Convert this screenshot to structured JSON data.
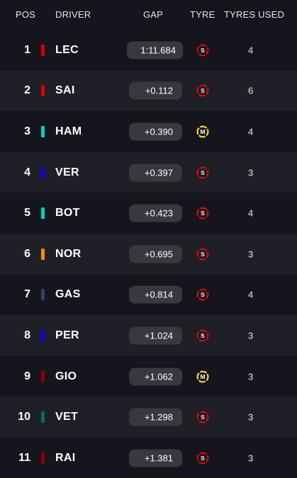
{
  "header": {
    "pos": "POS",
    "driver": "DRIVER",
    "gap": "GAP",
    "tyre": "TYRE",
    "tyres_used": "TYRES USED"
  },
  "compound_colors": {
    "S": "#e10600",
    "M": "#ffd12e"
  },
  "rows": [
    {
      "pos": "1",
      "driver": "LEC",
      "team_color": "#dc0000",
      "gap": "1:11.684",
      "tyre": "S",
      "tyre_icon": "soft-tyre-icon",
      "tyres_used": "4"
    },
    {
      "pos": "2",
      "driver": "SAI",
      "team_color": "#dc0000",
      "gap": "+0.112",
      "tyre": "S",
      "tyre_icon": "soft-tyre-icon",
      "tyres_used": "6"
    },
    {
      "pos": "3",
      "driver": "HAM",
      "team_color": "#00d2be",
      "gap": "+0.390",
      "tyre": "M",
      "tyre_icon": "medium-tyre-icon",
      "tyres_used": "4"
    },
    {
      "pos": "4",
      "driver": "VER",
      "team_color": "#0600ef",
      "gap": "+0.397",
      "tyre": "S",
      "tyre_icon": "soft-tyre-icon",
      "tyres_used": "3"
    },
    {
      "pos": "5",
      "driver": "BOT",
      "team_color": "#00d2be",
      "gap": "+0.423",
      "tyre": "S",
      "tyre_icon": "soft-tyre-icon",
      "tyres_used": "4"
    },
    {
      "pos": "6",
      "driver": "NOR",
      "team_color": "#ff8700",
      "gap": "+0.695",
      "tyre": "S",
      "tyre_icon": "soft-tyre-icon",
      "tyres_used": "3"
    },
    {
      "pos": "7",
      "driver": "GAS",
      "team_color": "#2b4562",
      "gap": "+0.814",
      "tyre": "S",
      "tyre_icon": "soft-tyre-icon",
      "tyres_used": "4"
    },
    {
      "pos": "8",
      "driver": "PER",
      "team_color": "#0600ef",
      "gap": "+1.024",
      "tyre": "S",
      "tyre_icon": "soft-tyre-icon",
      "tyres_used": "3"
    },
    {
      "pos": "9",
      "driver": "GIO",
      "team_color": "#900000",
      "gap": "+1.062",
      "tyre": "M",
      "tyre_icon": "medium-tyre-icon",
      "tyres_used": "3"
    },
    {
      "pos": "10",
      "driver": "VET",
      "team_color": "#006f62",
      "gap": "+1.298",
      "tyre": "S",
      "tyre_icon": "soft-tyre-icon",
      "tyres_used": "3"
    },
    {
      "pos": "11",
      "driver": "RAI",
      "team_color": "#900000",
      "gap": "+1.381",
      "tyre": "S",
      "tyre_icon": "soft-tyre-icon",
      "tyres_used": "3"
    }
  ]
}
